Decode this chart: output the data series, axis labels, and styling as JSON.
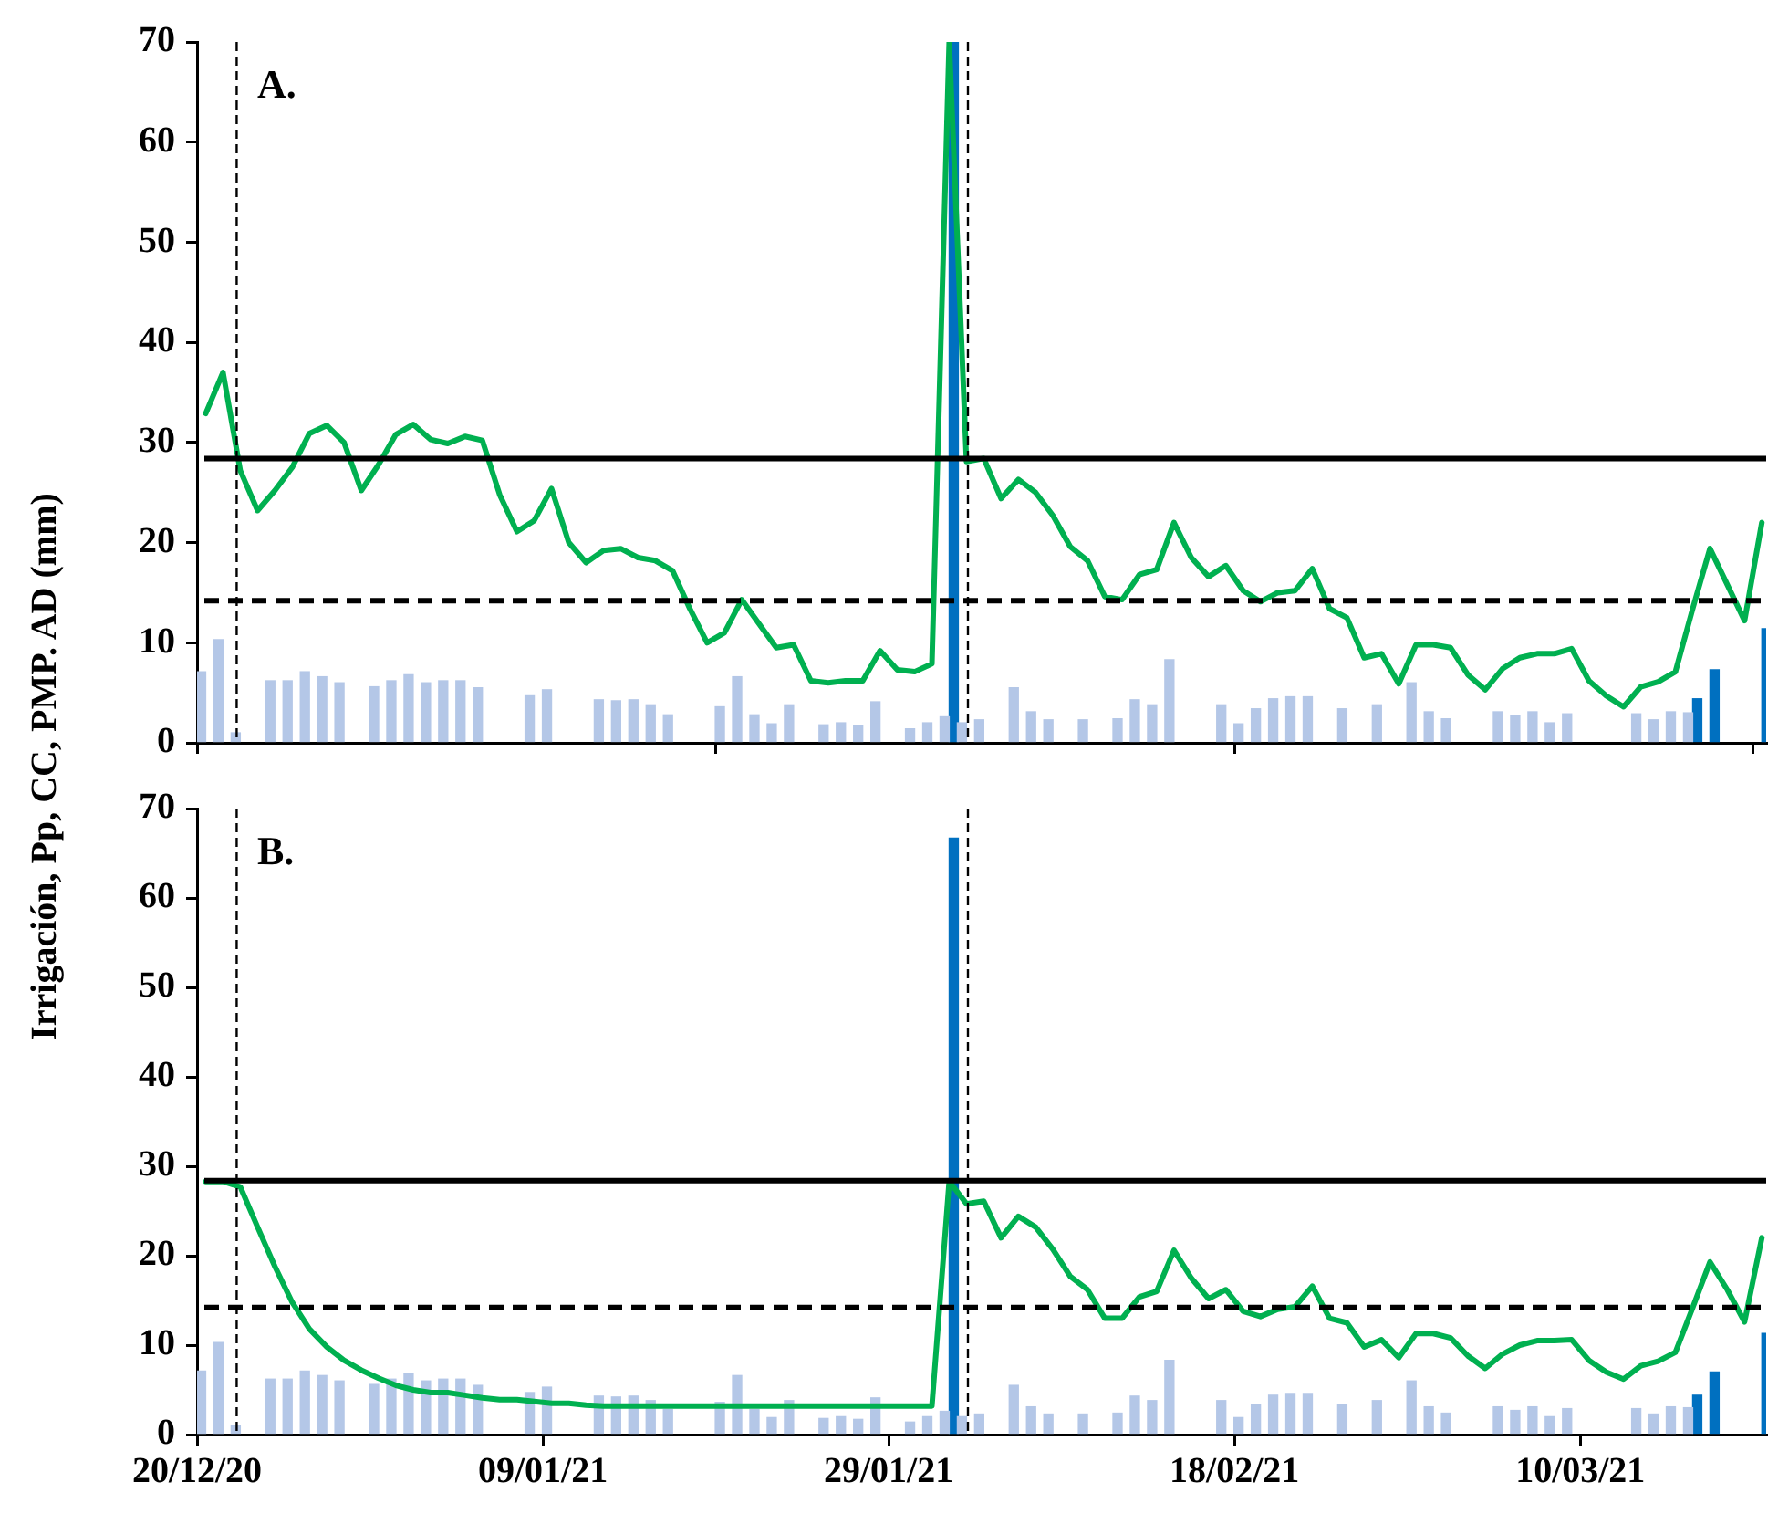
{
  "chart_data": [
    {
      "type": "bar",
      "ylabel": "Irrigación, Pp, CC, PMP. AD (mm)",
      "annotations": [
        "A."
      ],
      "x": [
        "2020-12-20T12:00",
        "2020-12-21T12:00",
        "2020-12-22T12:00",
        "2020-12-23T12:00",
        "2020-12-24T12:00",
        "2020-12-25T12:00",
        "2020-12-26T12:00",
        "2020-12-27T12:00",
        "2020-12-28T12:00",
        "2020-12-29T12:00",
        "2020-12-30T12:00",
        "2020-12-31T12:00",
        "2021-01-01T12:00",
        "2021-01-02T12:00",
        "2021-01-03T12:00",
        "2021-01-04T12:00",
        "2021-01-05T12:00",
        "2021-01-06T12:00",
        "2021-01-07T12:00",
        "2021-01-08T12:00",
        "2021-01-09T12:00",
        "2021-01-10T12:00",
        "2021-01-11T12:00",
        "2021-01-12T12:00",
        "2021-01-13T12:00",
        "2021-01-14T12:00",
        "2021-01-15T12:00",
        "2021-01-16T12:00",
        "2021-01-17T12:00",
        "2021-01-18T12:00",
        "2021-01-19T12:00",
        "2021-01-20T12:00",
        "2021-01-21T12:00",
        "2021-01-22T12:00",
        "2021-01-23T12:00",
        "2021-01-24T12:00",
        "2021-01-25T12:00",
        "2021-01-26T12:00",
        "2021-01-27T12:00",
        "2021-01-28T12:00",
        "2021-01-29T12:00",
        "2021-01-30T12:00",
        "2021-01-31T12:00",
        "2021-02-01T12:00",
        "2021-02-02T12:00",
        "2021-02-03T12:00",
        "2021-02-04T12:00",
        "2021-02-05T12:00",
        "2021-02-06T12:00",
        "2021-02-07T12:00",
        "2021-02-08T12:00",
        "2021-02-09T12:00",
        "2021-02-10T12:00",
        "2021-02-11T12:00",
        "2021-02-12T12:00",
        "2021-02-13T12:00",
        "2021-02-14T12:00",
        "2021-02-15T12:00",
        "2021-02-16T12:00",
        "2021-02-17T12:00",
        "2021-02-18T12:00",
        "2021-02-19T12:00",
        "2021-02-20T12:00",
        "2021-02-21T12:00",
        "2021-02-22T12:00",
        "2021-02-23T12:00",
        "2021-02-24T12:00",
        "2021-02-25T12:00",
        "2021-02-26T12:00",
        "2021-02-27T12:00",
        "2021-02-28T12:00",
        "2021-03-01T12:00",
        "2021-03-02T12:00",
        "2021-03-03T12:00",
        "2021-03-04T12:00",
        "2021-03-05T12:00",
        "2021-03-06T12:00",
        "2021-03-07T12:00",
        "2021-03-08T12:00",
        "2021-03-09T12:00",
        "2021-03-10T12:00",
        "2021-03-11T12:00",
        "2021-03-12T12:00",
        "2021-03-13T12:00",
        "2021-03-14T12:00",
        "2021-03-15T12:00",
        "2021-03-16T12:00",
        "2021-03-17T12:00",
        "2021-03-18T12:00",
        "2021-03-19T12:00",
        "2021-03-20T12:00"
      ],
      "series": [
        {
          "color": "#b4c7e7",
          "values": [
            7.1,
            10.3,
            1.0,
            null,
            6.2,
            6.2,
            7.1,
            6.6,
            6.0,
            null,
            5.6,
            6.2,
            6.8,
            6.0,
            6.2,
            6.2,
            5.5,
            null,
            null,
            4.7,
            5.3,
            null,
            null,
            4.3,
            4.2,
            4.3,
            3.8,
            2.8,
            null,
            null,
            3.6,
            6.6,
            2.8,
            1.9,
            3.8,
            null,
            1.8,
            2.0,
            1.7,
            4.1,
            null,
            1.4,
            2.0,
            2.6,
            2.0,
            2.3,
            null,
            5.5,
            3.1,
            2.3,
            null,
            2.3,
            null,
            2.4,
            4.3,
            3.8,
            8.3,
            null,
            null,
            3.8,
            1.9,
            3.4,
            4.4,
            4.6,
            4.6,
            null,
            3.4,
            null,
            3.8,
            null,
            6.0,
            3.1,
            2.4,
            null,
            null,
            3.1,
            2.7,
            3.1,
            2.0,
            2.9,
            null,
            null,
            null,
            2.9,
            2.3,
            3.1,
            3.0,
            null,
            null,
            null,
            null
          ]
        },
        {
          "color": "#0070c0",
          "values": [
            null,
            null,
            null,
            null,
            null,
            null,
            null,
            null,
            null,
            null,
            null,
            null,
            null,
            null,
            null,
            null,
            null,
            null,
            null,
            null,
            null,
            null,
            null,
            null,
            null,
            null,
            null,
            null,
            null,
            null,
            null,
            null,
            null,
            null,
            null,
            null,
            null,
            null,
            null,
            null,
            null,
            null,
            null,
            70,
            null,
            null,
            null,
            null,
            null,
            null,
            null,
            null,
            null,
            null,
            null,
            null,
            null,
            null,
            null,
            null,
            null,
            null,
            null,
            null,
            null,
            null,
            null,
            null,
            null,
            null,
            null,
            null,
            null,
            null,
            null,
            null,
            null,
            null,
            null,
            null,
            null,
            null,
            null,
            null,
            null,
            null,
            4.4,
            7.3,
            null,
            null,
            11.4
          ]
        },
        {
          "type": "line",
          "color": "#00b050",
          "values": [
            32.9,
            37.0,
            27.2,
            23.2,
            25.2,
            27.5,
            30.9,
            31.7,
            30.0,
            25.2,
            27.8,
            30.8,
            31.8,
            30.3,
            29.9,
            30.6,
            30.2,
            24.8,
            21.1,
            22.2,
            25.4,
            20.0,
            18.0,
            19.2,
            19.4,
            18.5,
            18.2,
            17.2,
            13.4,
            10.0,
            11.0,
            14.3,
            11.9,
            9.5,
            9.8,
            6.2,
            6.0,
            6.2,
            6.2,
            9.2,
            7.3,
            7.1,
            7.9,
            70,
            28.1,
            28.4,
            24.4,
            26.3,
            25.0,
            22.7,
            19.6,
            18.2,
            14.6,
            14.3,
            16.8,
            17.3,
            22.0,
            18.5,
            16.6,
            17.7,
            15.2,
            14.1,
            15.0,
            15.2,
            17.4,
            13.4,
            12.5,
            8.5,
            8.9,
            5.9,
            9.8,
            9.8,
            9.5,
            6.8,
            5.3,
            7.4,
            8.5,
            8.9,
            8.9,
            9.4,
            6.2,
            4.7,
            3.6,
            5.6,
            6.1,
            7.1,
            13.4,
            19.4,
            15.8,
            12.2,
            22.0
          ]
        }
      ],
      "xlim": [
        "2020-12-20",
        "2021-03-20T18:00"
      ],
      "xticks": [
        {
          "value": "2020-12-20",
          "label": null
        },
        {
          "value": "2021-01-19",
          "label": null
        },
        {
          "value": "2021-02-18",
          "label": null
        },
        {
          "value": "2021-03-20",
          "label": null
        }
      ],
      "ylim": [
        0,
        70
      ],
      "yticks": [
        0,
        10,
        20,
        30,
        40,
        50,
        60,
        70
      ],
      "tick_labels": "y",
      "legend": false,
      "ref_lines": [
        {
          "axis": "y",
          "value": 28.4,
          "color": "#000000",
          "line_style": "solid"
        },
        {
          "axis": "y",
          "value": 14.2,
          "color": "#000000",
          "line_style": "dashed"
        },
        {
          "axis": "x",
          "value": "2020-12-22T07:00",
          "color": "#000000",
          "line_style": "dashed"
        },
        {
          "axis": "x",
          "value": "2021-02-02T14:00",
          "color": "#000000",
          "line_style": "dashed"
        }
      ]
    },
    {
      "type": "bar",
      "annotations": [
        "B."
      ],
      "x": [
        "2020-12-20T12:00",
        "2020-12-21T12:00",
        "2020-12-22T12:00",
        "2020-12-23T12:00",
        "2020-12-24T12:00",
        "2020-12-25T12:00",
        "2020-12-26T12:00",
        "2020-12-27T12:00",
        "2020-12-28T12:00",
        "2020-12-29T12:00",
        "2020-12-30T12:00",
        "2020-12-31T12:00",
        "2021-01-01T12:00",
        "2021-01-02T12:00",
        "2021-01-03T12:00",
        "2021-01-04T12:00",
        "2021-01-05T12:00",
        "2021-01-06T12:00",
        "2021-01-07T12:00",
        "2021-01-08T12:00",
        "2021-01-09T12:00",
        "2021-01-10T12:00",
        "2021-01-11T12:00",
        "2021-01-12T12:00",
        "2021-01-13T12:00",
        "2021-01-14T12:00",
        "2021-01-15T12:00",
        "2021-01-16T12:00",
        "2021-01-17T12:00",
        "2021-01-18T12:00",
        "2021-01-19T12:00",
        "2021-01-20T12:00",
        "2021-01-21T12:00",
        "2021-01-22T12:00",
        "2021-01-23T12:00",
        "2021-01-24T12:00",
        "2021-01-25T12:00",
        "2021-01-26T12:00",
        "2021-01-27T12:00",
        "2021-01-28T12:00",
        "2021-01-29T12:00",
        "2021-01-30T12:00",
        "2021-01-31T12:00",
        "2021-02-01T12:00",
        "2021-02-02T12:00",
        "2021-02-03T12:00",
        "2021-02-04T12:00",
        "2021-02-05T12:00",
        "2021-02-06T12:00",
        "2021-02-07T12:00",
        "2021-02-08T12:00",
        "2021-02-09T12:00",
        "2021-02-10T12:00",
        "2021-02-11T12:00",
        "2021-02-12T12:00",
        "2021-02-13T12:00",
        "2021-02-14T12:00",
        "2021-02-15T12:00",
        "2021-02-16T12:00",
        "2021-02-17T12:00",
        "2021-02-18T12:00",
        "2021-02-19T12:00",
        "2021-02-20T12:00",
        "2021-02-21T12:00",
        "2021-02-22T12:00",
        "2021-02-23T12:00",
        "2021-02-24T12:00",
        "2021-02-25T12:00",
        "2021-02-26T12:00",
        "2021-02-27T12:00",
        "2021-02-28T12:00",
        "2021-03-01T12:00",
        "2021-03-02T12:00",
        "2021-03-03T12:00",
        "2021-03-04T12:00",
        "2021-03-05T12:00",
        "2021-03-06T12:00",
        "2021-03-07T12:00",
        "2021-03-08T12:00",
        "2021-03-09T12:00",
        "2021-03-10T12:00",
        "2021-03-11T12:00",
        "2021-03-12T12:00",
        "2021-03-13T12:00",
        "2021-03-14T12:00",
        "2021-03-15T12:00",
        "2021-03-16T12:00",
        "2021-03-17T12:00",
        "2021-03-18T12:00",
        "2021-03-19T12:00",
        "2021-03-20T12:00"
      ],
      "series": [
        {
          "color": "#b4c7e7",
          "values": [
            7.1,
            10.3,
            1.0,
            null,
            6.2,
            6.2,
            7.1,
            6.6,
            6.0,
            null,
            5.6,
            6.2,
            6.8,
            6.0,
            6.2,
            6.2,
            5.5,
            null,
            null,
            4.7,
            5.3,
            null,
            null,
            4.3,
            4.2,
            4.3,
            3.8,
            2.8,
            null,
            null,
            3.6,
            6.6,
            2.8,
            1.9,
            3.8,
            null,
            1.8,
            2.0,
            1.7,
            4.1,
            null,
            1.4,
            2.0,
            2.6,
            2.0,
            2.3,
            null,
            5.5,
            3.1,
            2.3,
            null,
            2.3,
            null,
            2.4,
            4.3,
            3.8,
            8.3,
            null,
            null,
            3.8,
            1.9,
            3.4,
            4.4,
            4.6,
            4.6,
            null,
            3.4,
            null,
            3.8,
            null,
            6.0,
            3.1,
            2.4,
            null,
            null,
            3.1,
            2.7,
            3.1,
            2.0,
            2.9,
            null,
            null,
            null,
            2.9,
            2.3,
            3.1,
            3.0,
            null,
            null,
            null,
            null
          ]
        },
        {
          "color": "#0070c0",
          "values": [
            null,
            null,
            null,
            null,
            null,
            null,
            null,
            null,
            null,
            null,
            null,
            null,
            null,
            null,
            null,
            null,
            null,
            null,
            null,
            null,
            null,
            null,
            null,
            null,
            null,
            null,
            null,
            null,
            null,
            null,
            null,
            null,
            null,
            null,
            null,
            null,
            null,
            null,
            null,
            null,
            null,
            null,
            null,
            66.7,
            null,
            null,
            null,
            null,
            null,
            null,
            null,
            null,
            null,
            null,
            null,
            null,
            null,
            null,
            null,
            null,
            null,
            null,
            null,
            null,
            null,
            null,
            null,
            null,
            null,
            null,
            null,
            null,
            null,
            null,
            null,
            null,
            null,
            null,
            null,
            null,
            null,
            null,
            null,
            null,
            null,
            null,
            4.4,
            7.0,
            null,
            null,
            11.3
          ]
        },
        {
          "type": "line",
          "color": "#00b050",
          "values": [
            28.3,
            28.3,
            27.7,
            23.2,
            18.8,
            14.8,
            11.8,
            9.8,
            8.3,
            7.2,
            6.3,
            5.5,
            5.0,
            4.7,
            4.7,
            4.4,
            4.1,
            3.9,
            3.9,
            3.7,
            3.5,
            3.5,
            3.3,
            3.2,
            3.2,
            3.2,
            3.2,
            3.2,
            3.2,
            3.2,
            3.2,
            3.2,
            3.2,
            3.2,
            3.2,
            3.2,
            3.2,
            3.2,
            3.2,
            3.2,
            3.2,
            3.2,
            3.2,
            28.3,
            25.8,
            26.1,
            22.0,
            24.4,
            23.2,
            20.7,
            17.7,
            16.2,
            13.0,
            13.0,
            15.4,
            16.0,
            20.6,
            17.5,
            15.2,
            16.2,
            13.8,
            13.2,
            14.0,
            14.3,
            16.6,
            13.0,
            12.5,
            9.8,
            10.6,
            8.6,
            11.3,
            11.3,
            10.8,
            8.8,
            7.4,
            9.0,
            10.0,
            10.5,
            10.5,
            10.6,
            8.3,
            7.0,
            6.2,
            7.7,
            8.2,
            9.2,
            14.2,
            19.3,
            16.2,
            12.6,
            22.0
          ]
        }
      ],
      "xlim": [
        "2020-12-20",
        "2021-03-20T18:00"
      ],
      "xticks": [
        {
          "value": "2020-12-20",
          "label": "20/12/20"
        },
        {
          "value": "2021-01-09",
          "label": "09/01/21"
        },
        {
          "value": "2021-01-29",
          "label": "29/01/21"
        },
        {
          "value": "2021-02-18",
          "label": "18/02/21"
        },
        {
          "value": "2021-03-10",
          "label": "10/03/21"
        }
      ],
      "ylim": [
        0,
        70
      ],
      "yticks": [
        0,
        10,
        20,
        30,
        40,
        50,
        60,
        70
      ],
      "legend": false,
      "ref_lines": [
        {
          "axis": "y",
          "value": 28.4,
          "color": "#000000",
          "line_style": "solid"
        },
        {
          "axis": "y",
          "value": 14.2,
          "color": "#000000",
          "line_style": "dashed"
        },
        {
          "axis": "x",
          "value": "2020-12-22T07:00",
          "color": "#000000",
          "line_style": "dashed"
        },
        {
          "axis": "x",
          "value": "2021-02-02T14:00",
          "color": "#000000",
          "line_style": "dashed"
        }
      ]
    }
  ]
}
